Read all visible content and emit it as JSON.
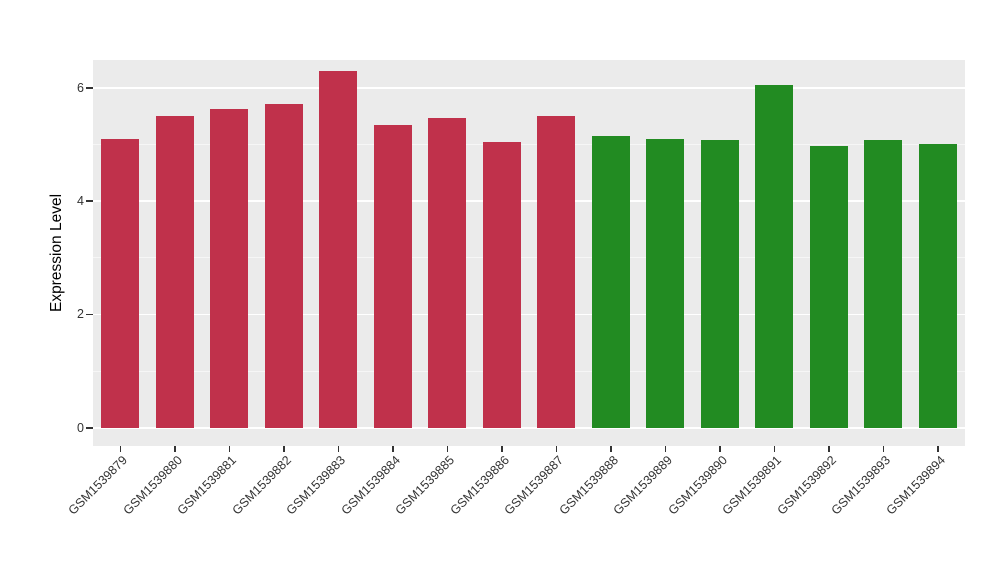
{
  "figure": {
    "background": "#FFFFFF"
  },
  "chart_data": {
    "type": "bar",
    "title": "",
    "xlabel": "",
    "ylabel": "Expression Level",
    "categories": [
      "GSM1539879",
      "GSM1539880",
      "GSM1539881",
      "GSM1539882",
      "GSM1539883",
      "GSM1539884",
      "GSM1539885",
      "GSM1539886",
      "GSM1539887",
      "GSM1539888",
      "GSM1539889",
      "GSM1539890",
      "GSM1539891",
      "GSM1539892",
      "GSM1539893",
      "GSM1539894"
    ],
    "values": [
      5.1,
      5.5,
      5.62,
      5.72,
      6.3,
      5.35,
      5.47,
      5.05,
      5.5,
      5.15,
      5.1,
      5.07,
      6.05,
      4.97,
      5.07,
      5.0
    ],
    "groups": [
      "red",
      "red",
      "red",
      "red",
      "red",
      "red",
      "red",
      "red",
      "red",
      "green",
      "green",
      "green",
      "green",
      "green",
      "green",
      "green"
    ],
    "group_colors": {
      "red": "#C0314B",
      "green": "#228B22"
    },
    "yticks": [
      0,
      2,
      4,
      6
    ],
    "yticks_minor": [
      1,
      3,
      5
    ],
    "ylim": [
      -0.32,
      6.49
    ],
    "grid": true,
    "legend": "none",
    "panel_background": "#EBEBEB",
    "gridline_color": "#FFFFFF",
    "bar_width_fraction": 0.7
  }
}
